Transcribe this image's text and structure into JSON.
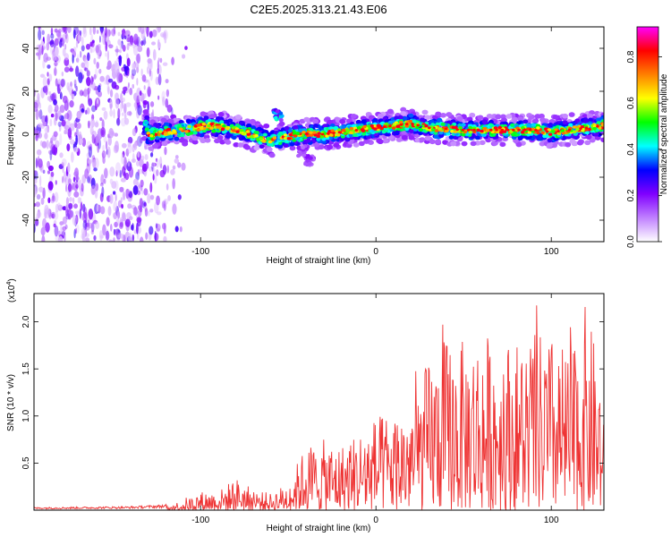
{
  "title": "C2E5.2025.313.21.43.E06",
  "chart_data": [
    {
      "type": "heatmap",
      "xlabel": "Height of straight line (km)",
      "ylabel": "Frequency (Hz)",
      "xlim": [
        -195,
        130
      ],
      "ylim": [
        -50,
        50
      ],
      "xticks": [
        -100,
        0,
        100
      ],
      "yticks": [
        -40,
        -20,
        0,
        20,
        40
      ],
      "colorbar": {
        "label": "Normalized spectral amplitude",
        "range": [
          0,
          0.93
        ],
        "ticks": [
          0.0,
          0.2,
          0.4,
          0.6,
          0.8
        ],
        "tick_labels": [
          "0.0",
          "0.2",
          "0.4",
          "0.6",
          "0.8"
        ],
        "colors": [
          "#ffffff",
          "#c080ff",
          "#8000ff",
          "#0000ff",
          "#00ffff",
          "#00ff00",
          "#ffff00",
          "#ff8000",
          "#ff0000",
          "#ff00ff"
        ]
      },
      "features": {
        "noise_region_x": [
          -195,
          -115
        ],
        "signal_track": [
          [
            -130,
            0
          ],
          [
            -110,
            2
          ],
          [
            -95,
            4
          ],
          [
            -85,
            3
          ],
          [
            -75,
            1
          ],
          [
            -65,
            -2
          ],
          [
            -60,
            -3
          ],
          [
            -50,
            -1
          ],
          [
            -40,
            0
          ],
          [
            -30,
            0
          ],
          [
            -10,
            2
          ],
          [
            0,
            3
          ],
          [
            10,
            4
          ],
          [
            20,
            5
          ],
          [
            30,
            3
          ],
          [
            50,
            2
          ],
          [
            70,
            2
          ],
          [
            90,
            2
          ],
          [
            100,
            1
          ],
          [
            110,
            2
          ],
          [
            130,
            4
          ]
        ],
        "side_blobs": [
          [
            -56,
            9
          ],
          [
            -42,
            -8
          ],
          [
            -38,
            -12
          ]
        ]
      }
    },
    {
      "type": "line",
      "xlabel": "Height of straight line (km)",
      "ylabel": "SNR (10 * v/v)",
      "multiplier_label": "(x10",
      "multiplier_exp": "4",
      "multiplier_close": ")",
      "xlim": [
        -195,
        130
      ],
      "ylim": [
        0,
        2.3
      ],
      "xticks": [
        -100,
        0,
        100
      ],
      "yticks": [
        0.5,
        1.0,
        1.5,
        2.0
      ],
      "ytick_labels": [
        "0.5",
        "1.0",
        "1.5",
        "2.0"
      ],
      "color": "#ee3333",
      "envelope": [
        {
          "x": -195,
          "y": 0.03
        },
        {
          "x": -140,
          "y": 0.04
        },
        {
          "x": -120,
          "y": 0.06
        },
        {
          "x": -110,
          "y": 0.1
        },
        {
          "x": -100,
          "y": 0.2
        },
        {
          "x": -90,
          "y": 0.2
        },
        {
          "x": -80,
          "y": 0.35
        },
        {
          "x": -70,
          "y": 0.22
        },
        {
          "x": -60,
          "y": 0.18
        },
        {
          "x": -50,
          "y": 0.3
        },
        {
          "x": -40,
          "y": 0.7
        },
        {
          "x": -30,
          "y": 0.75
        },
        {
          "x": -20,
          "y": 0.7
        },
        {
          "x": -10,
          "y": 0.85
        },
        {
          "x": 0,
          "y": 1.0
        },
        {
          "x": 10,
          "y": 1.05
        },
        {
          "x": 20,
          "y": 1.2
        },
        {
          "x": 30,
          "y": 1.6
        },
        {
          "x": 40,
          "y": 1.85
        },
        {
          "x": 50,
          "y": 1.8
        },
        {
          "x": 60,
          "y": 1.9
        },
        {
          "x": 70,
          "y": 1.85
        },
        {
          "x": 80,
          "y": 1.8
        },
        {
          "x": 90,
          "y": 1.9
        },
        {
          "x": 100,
          "y": 1.85
        },
        {
          "x": 110,
          "y": 1.7
        },
        {
          "x": 120,
          "y": 2.2
        },
        {
          "x": 130,
          "y": 1.3
        }
      ]
    }
  ]
}
